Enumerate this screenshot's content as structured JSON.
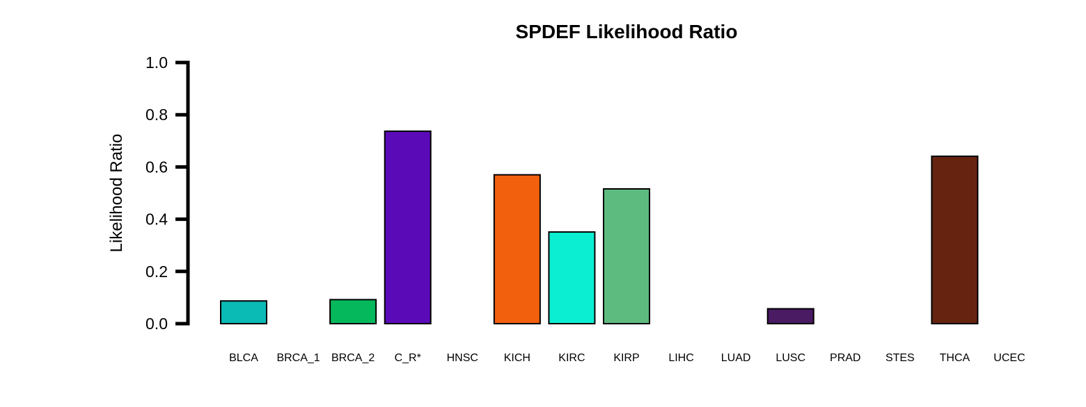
{
  "chart_data": {
    "type": "bar",
    "title": "SPDEF Likelihood Ratio",
    "xlabel": "",
    "ylabel": "Likelihood Ratio",
    "ylim": [
      0,
      1.0
    ],
    "yticks": [
      "0.0",
      "0.2",
      "0.4",
      "0.6",
      "0.8",
      "1.0"
    ],
    "grid": false,
    "categories": [
      "BLCA",
      "BRCA_1",
      "BRCA_2",
      "C_R*",
      "HNSC",
      "KICH",
      "KIRC",
      "KIRP",
      "LIHC",
      "LUAD",
      "LUSC",
      "PRAD",
      "STES",
      "THCA",
      "UCEC"
    ],
    "values": [
      0.087,
      0.0,
      0.092,
      0.737,
      0.0,
      0.57,
      0.351,
      0.516,
      0.0,
      0.0,
      0.057,
      0.0,
      0.0,
      0.641,
      0.0
    ],
    "colors": [
      "#0ABAB5",
      "#000000",
      "#06B85C",
      "#5B0AB8",
      "#000000",
      "#F2600E",
      "#0BEED2",
      "#5EBB80",
      "#000000",
      "#000000",
      "#4A1A63",
      "#000000",
      "#000000",
      "#662410",
      "#000000"
    ]
  }
}
